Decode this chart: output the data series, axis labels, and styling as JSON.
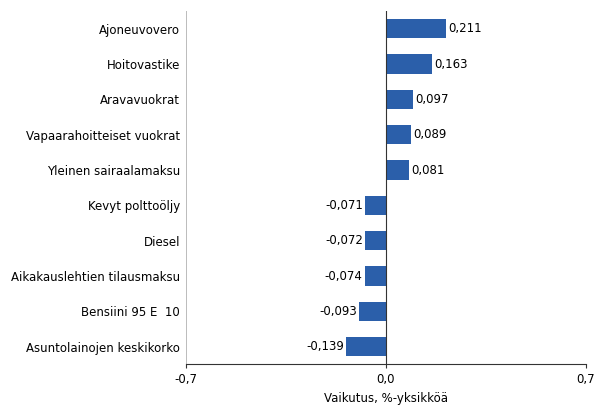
{
  "categories": [
    "Asuntolainojen keskikorko",
    "Bensiini 95 E  10",
    "Aikakauslehtien tilausmaksu",
    "Diesel",
    "Kevyt polttoöljy",
    "Yleinen sairaalamaksu",
    "Vapaarahoitteiset vuokrat",
    "Aravavuokrat",
    "Hoitovastike",
    "Ajoneuvovero"
  ],
  "values": [
    -0.139,
    -0.093,
    -0.074,
    -0.072,
    -0.071,
    0.081,
    0.089,
    0.097,
    0.163,
    0.211
  ],
  "bar_color": "#2b5faa",
  "xlabel": "Vaikutus, %-yksikköä",
  "xlim": [
    -0.7,
    0.7
  ],
  "xticks": [
    -0.7,
    0.0,
    0.7
  ],
  "xtick_labels": [
    "-0,7",
    "0,0",
    "0,7"
  ],
  "background_color": "#ffffff",
  "grid_color": "#bbbbbb",
  "label_fontsize": 8.5,
  "xlabel_fontsize": 8.5,
  "value_labels": [
    "-0,139",
    "-0,093",
    "-0,074",
    "-0,072",
    "-0,071",
    "0,081",
    "0,089",
    "0,097",
    "0,163",
    "0,211"
  ]
}
